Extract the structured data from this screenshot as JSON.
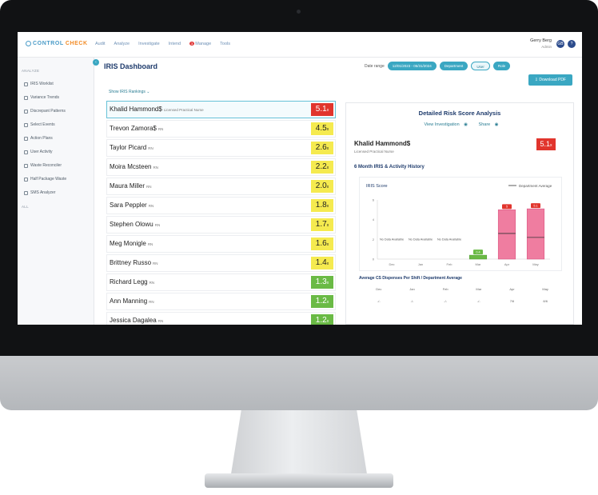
{
  "app": {
    "logo_part1": "CONTROL",
    "logo_part2": "CHECK",
    "nav": [
      "Audit",
      "Analyze",
      "Investigate",
      "Intend",
      "Manage",
      "Tools"
    ],
    "manage_badge": "3",
    "user_name": "Gerry Berg",
    "user_sub": "Admin",
    "user_initials": "GB",
    "help_icon": "?"
  },
  "sidebar": {
    "collapse_label": "‹",
    "section_label": "ANALYZE",
    "items": [
      {
        "label": "IRIS Worklist",
        "icon": "list-icon"
      },
      {
        "label": "Variance Trends",
        "icon": "trend-icon"
      },
      {
        "label": "Discrepant Patterns",
        "icon": "pattern-icon"
      },
      {
        "label": "Select Events",
        "icon": "event-icon"
      },
      {
        "label": "Action Plans",
        "icon": "plan-icon"
      },
      {
        "label": "User Activity",
        "icon": "user-icon"
      },
      {
        "label": "Waste Reconciler",
        "icon": "waste-icon"
      },
      {
        "label": "Half Package Waste",
        "icon": "package-icon"
      },
      {
        "label": "SMS Analyzer",
        "icon": "sms-icon"
      }
    ],
    "section2_label": "ALL"
  },
  "main": {
    "page_title": "IRIS Dashboard",
    "filter_label": "Date range",
    "date_pill": "12/01/2023 - 05/31/2024",
    "department_pill": "Department",
    "user_pill": "User",
    "role_pill": "Role",
    "download_label": "Download PDF",
    "show_ranking": "Show IRIS Rankings"
  },
  "ranking": [
    {
      "name": "Khalid Hammond$",
      "role": "Licensed Practical Nurse",
      "score": "5.1",
      "level": "red"
    },
    {
      "name": "Trevon Zamora$",
      "role": "RN",
      "score": "4.5",
      "level": "yellow"
    },
    {
      "name": "Taylor Picard",
      "role": "RN",
      "score": "2.6",
      "level": "yellow"
    },
    {
      "name": "Moira Mcsteen",
      "role": "RN",
      "score": "2.2",
      "level": "yellow"
    },
    {
      "name": "Maura Miller",
      "role": "RN",
      "score": "2.0",
      "level": "yellow"
    },
    {
      "name": "Sara Peppler",
      "role": "RN",
      "score": "1.8",
      "level": "yellow"
    },
    {
      "name": "Stephen Olowu",
      "role": "RN",
      "score": "1.7",
      "level": "yellow"
    },
    {
      "name": "Meg Monigle",
      "role": "RN",
      "score": "1.6",
      "level": "yellow"
    },
    {
      "name": "Brittney Russo",
      "role": "RN",
      "score": "1.4",
      "level": "yellow"
    },
    {
      "name": "Richard Legg",
      "role": "RN",
      "score": "1.3",
      "level": "green"
    },
    {
      "name": "Ann Manning",
      "role": "RN",
      "score": "1.2",
      "level": "green"
    },
    {
      "name": "Jessica Dagalea",
      "role": "RN",
      "score": "1.2",
      "level": "green"
    }
  ],
  "score_suffix": "x",
  "detail": {
    "title": "Detailed Risk Score Analysis",
    "link1": "View Investigation",
    "link2": "Share",
    "emp_name": "Khalid Hammond$",
    "emp_sub": "Licensed Practical Nurse",
    "emp_score": "5.1",
    "history_title": "6 Month IRIS & Activity History",
    "chart_label": "IRIS Score",
    "legend_label": "Department Average",
    "no_data_text": "No Data Available",
    "avg_title": "Average CS Dispenses Per Shift / Department Average",
    "avg_months": [
      "Dec",
      "Jan",
      "Feb",
      "Mar",
      "Apr",
      "May"
    ],
    "avg_values": [
      "-/-",
      "-/-",
      "-/-",
      "-/-",
      "7/6",
      "8/6"
    ]
  },
  "chart_data": {
    "type": "bar",
    "categories": [
      "Dec",
      "Jan",
      "Feb",
      "Mar",
      "Apr",
      "May"
    ],
    "series": [
      {
        "values": [
          null,
          null,
          null,
          0.4,
          5.0,
          5.1
        ]
      },
      {
        "values": [
          null,
          null,
          null,
          null,
          2.6,
          2.2
        ]
      }
    ],
    "ylim": [
      0,
      6
    ],
    "yticks": [
      0,
      2,
      4,
      6
    ],
    "colors": {
      "low": "#6aba45",
      "high": "#ef7da0",
      "average": "#333333"
    }
  }
}
